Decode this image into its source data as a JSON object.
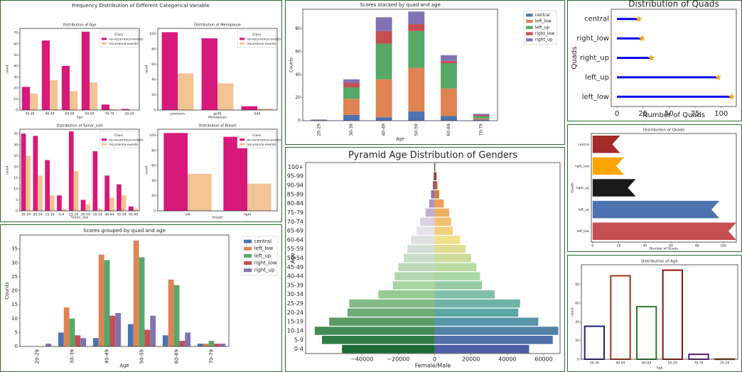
{
  "figure_title": "Frequency Distribution of Different Categorical Variable",
  "chart_data": [
    {
      "type": "bar",
      "title": "Distribution of Age",
      "xlabel": "Age",
      "ylabel": "count",
      "legend_title": "Class",
      "categories": [
        "30-39",
        "40-49",
        "60-69",
        "50-59",
        "70-79",
        "20-29"
      ],
      "series": [
        {
          "name": "no-recurrence-events",
          "color": "#d6197a",
          "values": [
            21,
            63,
            40,
            71,
            5,
            1
          ]
        },
        {
          "name": "recurrence-events",
          "color": "#f2c394",
          "values": [
            15,
            27,
            17,
            25,
            1,
            0
          ]
        }
      ],
      "ylim": [
        0,
        74
      ],
      "yticks": [
        0,
        10,
        20,
        30,
        40,
        50,
        60,
        70
      ]
    },
    {
      "type": "bar",
      "title": "Distribution of Menopause",
      "xlabel": "Menopause",
      "ylabel": "count",
      "legend_title": "Class",
      "categories": [
        "premeno",
        "ge40",
        "lt40"
      ],
      "series": [
        {
          "name": "no-recurrence-events",
          "color": "#d6197a",
          "values": [
            102,
            94,
            5
          ]
        },
        {
          "name": "recurrence-events",
          "color": "#f2c394",
          "values": [
            48,
            35,
            2
          ]
        }
      ],
      "ylim": [
        0,
        107
      ],
      "yticks": [
        0,
        20,
        40,
        60,
        80,
        100
      ]
    },
    {
      "type": "bar",
      "title": "Distribution of Tumor_size",
      "xlabel": "Tumor_size",
      "ylabel": "count",
      "legend_title": "Class",
      "categories": [
        "30-34",
        "20-24",
        "15-19",
        "0-4",
        "25-29",
        "50-54",
        "10-14",
        "40-44",
        "35-39",
        "45-49"
      ],
      "series": [
        {
          "name": "no-recurrence-events",
          "color": "#d6197a",
          "values": [
            35,
            34,
            23,
            7,
            36,
            5,
            27,
            16,
            12,
            2
          ]
        },
        {
          "name": "recurrence-events",
          "color": "#f2c394",
          "values": [
            25,
            16,
            7,
            1,
            18,
            3,
            1,
            6,
            7,
            1
          ]
        }
      ],
      "ylim": [
        0,
        37
      ],
      "yticks": [
        0,
        5,
        10,
        15,
        20,
        25,
        30,
        35
      ]
    },
    {
      "type": "bar",
      "title": "Distribution of Breast",
      "xlabel": "breast",
      "ylabel": "count",
      "legend_title": "Class",
      "categories": [
        "left",
        "right"
      ],
      "series": [
        {
          "name": "no-recurrence-events",
          "color": "#d6197a",
          "values": [
            103,
            98
          ]
        },
        {
          "name": "recurrence-events",
          "color": "#f2c394",
          "values": [
            49,
            36
          ]
        }
      ],
      "ylim": [
        0,
        108
      ],
      "yticks": [
        0,
        20,
        40,
        60,
        80,
        100
      ]
    },
    {
      "type": "bar",
      "title": "Scores grouped by quad and age",
      "xlabel": "Age",
      "ylabel": "Counts",
      "categories": [
        "20-29",
        "30-39",
        "40-49",
        "50-59",
        "60-69",
        "70-79"
      ],
      "series": [
        {
          "name": "central",
          "color": "#4c72b0",
          "values": [
            0,
            5,
            3,
            8,
            4,
            1
          ]
        },
        {
          "name": "left_low",
          "color": "#dd8452",
          "values": [
            0,
            14,
            33,
            38,
            24,
            1
          ]
        },
        {
          "name": "left_up",
          "color": "#55a868",
          "values": [
            0,
            10,
            31,
            32,
            22,
            2
          ]
        },
        {
          "name": "right_low",
          "color": "#c44e52",
          "values": [
            0,
            4,
            11,
            6,
            2,
            1
          ]
        },
        {
          "name": "right_up",
          "color": "#8172b3",
          "values": [
            1,
            3,
            12,
            11,
            5,
            1
          ]
        }
      ],
      "ylim": [
        0,
        40
      ],
      "yticks": [
        0,
        5,
        10,
        15,
        20,
        25,
        30,
        35
      ]
    },
    {
      "type": "bar",
      "stacked": true,
      "title": "Scores stacked by quad and age",
      "xlabel": "Age",
      "ylabel": "Counts",
      "categories": [
        "20-29",
        "30-39",
        "40-49",
        "50-59",
        "60-69",
        "70-79"
      ],
      "series": [
        {
          "name": "central",
          "color": "#4c72b0",
          "values": [
            0,
            5,
            3,
            8,
            4,
            1
          ]
        },
        {
          "name": "left_low",
          "color": "#dd8452",
          "values": [
            0,
            14,
            33,
            38,
            24,
            1
          ]
        },
        {
          "name": "left_up",
          "color": "#55a868",
          "values": [
            0,
            10,
            31,
            32,
            22,
            2
          ]
        },
        {
          "name": "right_low",
          "color": "#c44e52",
          "values": [
            0,
            4,
            11,
            6,
            2,
            1
          ]
        },
        {
          "name": "right_up",
          "color": "#8172b3",
          "values": [
            1,
            3,
            12,
            11,
            5,
            1
          ]
        }
      ],
      "ylim": [
        0,
        97
      ],
      "yticks": [
        0,
        20,
        40,
        60,
        80
      ]
    },
    {
      "type": "pyramid",
      "title": "Pyramid Age Distribution of Genders",
      "xlabel": "Female/Male",
      "ylabel": "Age",
      "categories": [
        "0-4",
        "5-9",
        "10-14",
        "15-19",
        "20-24",
        "25-29",
        "30-34",
        "35-39",
        "40-44",
        "45-49",
        "50-54",
        "55-59",
        "60-64",
        "65-69",
        "70-74",
        "75-79",
        "80-84",
        "85-89",
        "90-94",
        "95-99",
        "100+"
      ],
      "series": [
        {
          "colors": [
            "#1b6b35",
            "#a6d49e",
            "#e9e3ef",
            "#4a1f6b"
          ],
          "values": [
            -51000,
            -62000,
            -66000,
            -58000,
            -48000,
            -47000,
            -31000,
            -23000,
            -22000,
            -20000,
            -17000,
            -15000,
            -13000,
            -10000,
            -8000,
            -5000,
            -3000,
            -2000,
            -1000,
            -500,
            -200
          ]
        },
        {
          "colors": [
            "#4c5ea8",
            "#5aa6a6",
            "#a8d8a6",
            "#f3df8c",
            "#f0a050",
            "#6e2410"
          ],
          "values": [
            52000,
            65000,
            68000,
            57000,
            46000,
            47000,
            33000,
            26000,
            25000,
            23000,
            20000,
            17000,
            14000,
            10000,
            9000,
            8000,
            5000,
            2500,
            1500,
            1000,
            300
          ]
        }
      ],
      "xlim": [
        -71000,
        69000
      ],
      "xticks": [
        {
          "value": -40000,
          "label": "−40000"
        },
        {
          "value": -20000,
          "label": "−20000"
        },
        0,
        20000,
        40000,
        60000
      ]
    },
    {
      "type": "lollipop",
      "title": "Distribution of Quads",
      "xlabel": "Number of Quads",
      "ylabel": "Quads",
      "categories": [
        "central",
        "right_low",
        "right_up",
        "left_up",
        "left_low"
      ],
      "values": [
        21,
        24,
        33,
        97,
        110
      ],
      "color": "#0000ee",
      "marker_color": "#f5a623",
      "xlim": [
        -5.5,
        114.5
      ],
      "xticks": [
        0,
        25,
        50,
        75,
        100
      ]
    },
    {
      "type": "barh",
      "title": "Distribution of Quads",
      "xlabel": "Number of Quads",
      "ylabel": "Quads",
      "categories": [
        "central",
        "right_low",
        "right_up",
        "left_up",
        "left_low"
      ],
      "values": [
        21,
        24,
        33,
        97,
        110
      ],
      "colors": [
        "#a52a2a",
        "#ffa500",
        "#1a1a1a",
        "#4c72b0",
        "#c44e52"
      ],
      "xlim": [
        -1,
        110
      ],
      "xticks": [
        0,
        20,
        40,
        60,
        80,
        100
      ]
    },
    {
      "type": "bar",
      "outline": true,
      "title": "Distribution of Age",
      "xlabel": "Age",
      "ylabel": "count",
      "categories": [
        "30-39",
        "40-49",
        "60-69",
        "50-59",
        "70-79",
        "20-29"
      ],
      "values": [
        36,
        90,
        57,
        96,
        6,
        1
      ],
      "colors": [
        "#1f1f7a",
        "#a0361a",
        "#2a7a2a",
        "#8b1010",
        "#5a1a70",
        "#7a3a10"
      ],
      "ylim": [
        0,
        101
      ],
      "yticks": [
        0,
        20,
        40,
        60,
        80
      ]
    }
  ]
}
